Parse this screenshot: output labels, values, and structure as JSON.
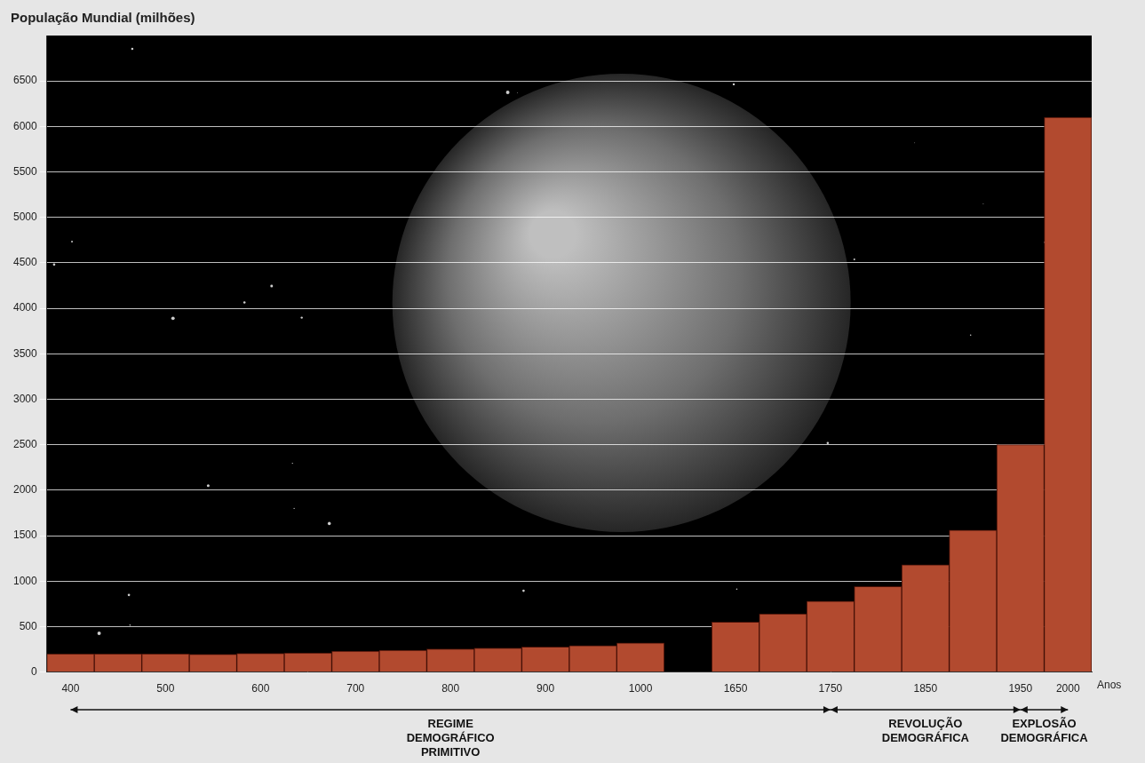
{
  "chart_data": {
    "type": "bar",
    "y_label": "População Mundial (milhões)",
    "x_label": "Anos",
    "categories": [
      "400",
      null,
      "500",
      null,
      "600",
      null,
      "700",
      null,
      "800",
      null,
      "900",
      null,
      "1000",
      null,
      "1650",
      null,
      "1750",
      null,
      "1850",
      null,
      "1950",
      "2000"
    ],
    "values": [
      200,
      200,
      200,
      195,
      205,
      210,
      230,
      240,
      255,
      265,
      275,
      290,
      320,
      null,
      550,
      640,
      780,
      940,
      1180,
      1560,
      2500,
      6100
    ],
    "color": "#b24a2f",
    "ylim": [
      0,
      7000
    ],
    "yticks": [
      0,
      500,
      1000,
      1500,
      2000,
      2500,
      3000,
      3500,
      4000,
      4500,
      5000,
      5500,
      6000,
      6500
    ],
    "grid": true,
    "annotations": [
      {
        "text": "REGIME DEMOGRÁFICO PRIMITIVO",
        "from": "400",
        "to": "1750"
      },
      {
        "text": "REVOLUÇÃO DEMOGRÁFICA",
        "from": "1750",
        "to": "1950"
      },
      {
        "text": "EXPLOSÃO DEMOGRÁFICA",
        "from": "1950",
        "to": "2000"
      }
    ]
  }
}
